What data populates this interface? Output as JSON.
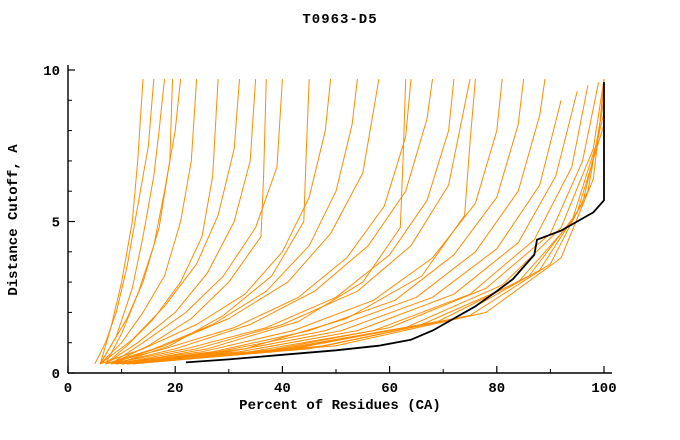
{
  "chart_data": {
    "type": "line",
    "title": "T0963-D5",
    "xlabel": "Percent of Residues (CA)",
    "ylabel": "Distance Cutoff, A",
    "xlim": [
      0,
      100
    ],
    "ylim": [
      0,
      10
    ],
    "x_major_ticks": [
      0,
      20,
      40,
      60,
      80,
      100
    ],
    "x_minor_ticks": [
      10,
      30,
      50,
      70,
      90
    ],
    "y_major_ticks": [
      0,
      5,
      10
    ],
    "y_minor_ticks": [
      1,
      2,
      3,
      4,
      6,
      7,
      8,
      9
    ],
    "legend_position": "none",
    "grid": false,
    "colors": {
      "model": "#ff8c00",
      "highlight": "#000000"
    },
    "models": [
      [
        [
          5,
          0.3
        ],
        [
          7,
          1.0
        ],
        [
          9,
          2.0
        ],
        [
          11,
          3.5
        ],
        [
          13,
          5.5
        ],
        [
          15,
          7.5
        ],
        [
          16,
          9.7
        ]
      ],
      [
        [
          6,
          0.3
        ],
        [
          8,
          0.9
        ],
        [
          11,
          1.8
        ],
        [
          14,
          3.0
        ],
        [
          17,
          4.8
        ],
        [
          19,
          7.0
        ],
        [
          19.5,
          9.7
        ]
      ],
      [
        [
          6,
          0.3
        ],
        [
          10,
          1.0
        ],
        [
          14,
          2.0
        ],
        [
          18,
          3.2
        ],
        [
          21,
          5.0
        ],
        [
          23,
          7.0
        ],
        [
          24,
          9.7
        ]
      ],
      [
        [
          7,
          0.3
        ],
        [
          11,
          0.9
        ],
        [
          16,
          1.8
        ],
        [
          21,
          3.0
        ],
        [
          25,
          4.5
        ],
        [
          27,
          6.5
        ],
        [
          28,
          9.7
        ]
      ],
      [
        [
          6,
          0.3
        ],
        [
          12,
          1.1
        ],
        [
          18,
          2.2
        ],
        [
          24,
          3.6
        ],
        [
          28,
          5.2
        ],
        [
          31,
          7.4
        ],
        [
          32,
          9.7
        ]
      ],
      [
        [
          7,
          0.3
        ],
        [
          13,
          1.0
        ],
        [
          20,
          2.0
        ],
        [
          26,
          3.3
        ],
        [
          31,
          5.0
        ],
        [
          34,
          7.0
        ],
        [
          35,
          9.7
        ]
      ],
      [
        [
          8,
          0.3
        ],
        [
          14,
          1.0
        ],
        [
          22,
          2.0
        ],
        [
          29,
          3.2
        ],
        [
          35,
          4.8
        ],
        [
          39,
          6.8
        ],
        [
          40,
          9.7
        ]
      ],
      [
        [
          6,
          0.3
        ],
        [
          14,
          0.8
        ],
        [
          24,
          1.6
        ],
        [
          33,
          2.6
        ],
        [
          40,
          4.0
        ],
        [
          45,
          5.8
        ],
        [
          48,
          8.0
        ],
        [
          49,
          9.7
        ]
      ],
      [
        [
          7,
          0.3
        ],
        [
          16,
          0.8
        ],
        [
          27,
          1.6
        ],
        [
          37,
          2.7
        ],
        [
          45,
          4.2
        ],
        [
          50,
          6.0
        ],
        [
          53,
          8.2
        ],
        [
          54,
          9.7
        ]
      ],
      [
        [
          8,
          0.3
        ],
        [
          18,
          0.9
        ],
        [
          30,
          1.8
        ],
        [
          41,
          3.0
        ],
        [
          49,
          4.6
        ],
        [
          55,
          6.6
        ],
        [
          58,
          9.7
        ]
      ],
      [
        [
          7,
          0.3
        ],
        [
          18,
          0.8
        ],
        [
          31,
          1.5
        ],
        [
          43,
          2.5
        ],
        [
          52,
          3.8
        ],
        [
          59,
          5.5
        ],
        [
          63,
          7.8
        ],
        [
          64,
          9.7
        ]
      ],
      [
        [
          8,
          0.3
        ],
        [
          20,
          0.8
        ],
        [
          34,
          1.6
        ],
        [
          46,
          2.7
        ],
        [
          56,
          4.2
        ],
        [
          63,
          6.0
        ],
        [
          67,
          8.4
        ],
        [
          68,
          9.7
        ]
      ],
      [
        [
          8,
          0.3
        ],
        [
          22,
          0.8
        ],
        [
          37,
          1.5
        ],
        [
          50,
          2.5
        ],
        [
          60,
          3.9
        ],
        [
          67,
          5.7
        ],
        [
          71,
          8.0
        ],
        [
          72,
          9.7
        ]
      ],
      [
        [
          9,
          0.3
        ],
        [
          24,
          0.8
        ],
        [
          40,
          1.6
        ],
        [
          54,
          2.7
        ],
        [
          64,
          4.2
        ],
        [
          71,
          6.2
        ],
        [
          75,
          9.7
        ]
      ],
      [
        [
          8,
          0.3
        ],
        [
          25,
          0.7
        ],
        [
          42,
          1.4
        ],
        [
          57,
          2.4
        ],
        [
          68,
          3.8
        ],
        [
          76,
          5.6
        ],
        [
          80,
          8.0
        ],
        [
          81,
          9.7
        ]
      ],
      [
        [
          9,
          0.3
        ],
        [
          27,
          0.7
        ],
        [
          45,
          1.4
        ],
        [
          61,
          2.4
        ],
        [
          72,
          3.9
        ],
        [
          80,
          5.8
        ],
        [
          84,
          8.2
        ],
        [
          85,
          9.7
        ]
      ],
      [
        [
          9,
          0.3
        ],
        [
          28,
          0.7
        ],
        [
          48,
          1.4
        ],
        [
          65,
          2.5
        ],
        [
          76,
          4.0
        ],
        [
          84,
          6.0
        ],
        [
          88,
          8.5
        ],
        [
          89,
          9.7
        ]
      ],
      [
        [
          10,
          0.3
        ],
        [
          30,
          0.7
        ],
        [
          51,
          1.4
        ],
        [
          68,
          2.5
        ],
        [
          80,
          4.1
        ],
        [
          88,
          6.2
        ],
        [
          92,
          9.0
        ]
      ],
      [
        [
          9,
          0.3
        ],
        [
          32,
          0.7
        ],
        [
          54,
          1.4
        ],
        [
          72,
          2.6
        ],
        [
          84,
          4.3
        ],
        [
          91,
          6.5
        ],
        [
          95,
          9.3
        ]
      ],
      [
        [
          10,
          0.3
        ],
        [
          34,
          0.7
        ],
        [
          57,
          1.4
        ],
        [
          75,
          2.6
        ],
        [
          87,
          4.4
        ],
        [
          94,
          6.8
        ],
        [
          97,
          9.5
        ]
      ],
      [
        [
          10,
          0.3
        ],
        [
          36,
          0.7
        ],
        [
          60,
          1.5
        ],
        [
          78,
          2.8
        ],
        [
          90,
          4.6
        ],
        [
          96,
          7.0
        ],
        [
          99,
          9.6
        ]
      ],
      [
        [
          11,
          0.3
        ],
        [
          38,
          0.7
        ],
        [
          63,
          1.5
        ],
        [
          81,
          2.9
        ],
        [
          92,
          4.8
        ],
        [
          98,
          7.4
        ],
        [
          100,
          9.7
        ]
      ],
      [
        [
          10,
          0.3
        ],
        [
          40,
          0.8
        ],
        [
          66,
          1.6
        ],
        [
          84,
          3.0
        ],
        [
          94,
          5.0
        ],
        [
          99,
          7.8
        ],
        [
          100,
          9.7
        ]
      ],
      [
        [
          11,
          0.3
        ],
        [
          42,
          0.8
        ],
        [
          69,
          1.7
        ],
        [
          86,
          3.2
        ],
        [
          95,
          5.3
        ],
        [
          100,
          8.2
        ]
      ],
      [
        [
          12,
          0.3
        ],
        [
          45,
          0.8
        ],
        [
          72,
          1.8
        ],
        [
          88,
          3.4
        ],
        [
          96,
          5.6
        ],
        [
          100,
          8.6
        ]
      ],
      [
        [
          11,
          0.3
        ],
        [
          48,
          0.9
        ],
        [
          75,
          1.9
        ],
        [
          90,
          3.6
        ],
        [
          97,
          6.0
        ],
        [
          100,
          9.0
        ]
      ],
      [
        [
          12,
          0.3
        ],
        [
          50,
          0.9
        ],
        [
          78,
          2.0
        ],
        [
          92,
          3.8
        ],
        [
          98,
          6.4
        ],
        [
          100,
          9.4
        ]
      ],
      [
        [
          6,
          0.3
        ],
        [
          9,
          1.2
        ],
        [
          12,
          2.8
        ],
        [
          14,
          4.5
        ],
        [
          16,
          6.5
        ],
        [
          17,
          8.0
        ],
        [
          18,
          9.7
        ]
      ],
      [
        [
          6,
          0.3
        ],
        [
          8,
          1.5
        ],
        [
          10,
          3.0
        ],
        [
          12,
          5.0
        ],
        [
          13,
          7.0
        ],
        [
          14,
          9.7
        ]
      ],
      [
        [
          7,
          0.3
        ],
        [
          10,
          1.3
        ],
        [
          13,
          2.6
        ],
        [
          16,
          4.2
        ],
        [
          18,
          6.0
        ],
        [
          20,
          8.0
        ],
        [
          21,
          9.7
        ]
      ],
      [
        [
          8,
          0.3
        ],
        [
          15,
          0.9
        ],
        [
          23,
          1.8
        ],
        [
          30,
          3.0
        ],
        [
          36,
          4.5
        ],
        [
          36.5,
          6.5
        ],
        [
          37,
          9.7
        ]
      ],
      [
        [
          9,
          0.3
        ],
        [
          19,
          0.9
        ],
        [
          29,
          1.9
        ],
        [
          38,
          3.2
        ],
        [
          44,
          5.0
        ],
        [
          44.5,
          7.5
        ],
        [
          45,
          9.7
        ]
      ],
      [
        [
          10,
          0.3
        ],
        [
          26,
          0.8
        ],
        [
          43,
          1.7
        ],
        [
          55,
          3.0
        ],
        [
          62,
          4.8
        ],
        [
          62.5,
          7.0
        ],
        [
          63,
          9.7
        ]
      ],
      [
        [
          11,
          0.3
        ],
        [
          33,
          0.8
        ],
        [
          52,
          1.8
        ],
        [
          66,
          3.2
        ],
        [
          74,
          5.2
        ],
        [
          75,
          7.6
        ],
        [
          76,
          9.7
        ]
      ]
    ],
    "highlight": [
      [
        22,
        0.35
      ],
      [
        30,
        0.45
      ],
      [
        40,
        0.6
      ],
      [
        50,
        0.75
      ],
      [
        58,
        0.9
      ],
      [
        64,
        1.1
      ],
      [
        68,
        1.4
      ],
      [
        72,
        1.8
      ],
      [
        76,
        2.2
      ],
      [
        80,
        2.7
      ],
      [
        83,
        3.1
      ],
      [
        85,
        3.5
      ],
      [
        87,
        3.9
      ],
      [
        87.5,
        4.4
      ],
      [
        89,
        4.5
      ],
      [
        92,
        4.7
      ],
      [
        95,
        5.0
      ],
      [
        98,
        5.3
      ],
      [
        100,
        5.7
      ],
      [
        100,
        9.6
      ]
    ]
  }
}
